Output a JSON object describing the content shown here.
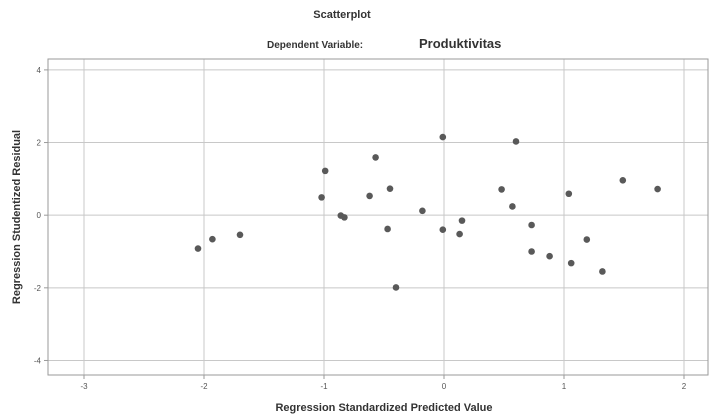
{
  "chart_data": {
    "type": "scatter",
    "title": "Scatterplot",
    "subtitle_prefix": "Dependent Variable:",
    "subtitle_value": "Produktivitas",
    "xlabel": "Regression Standardized Predicted Value",
    "ylabel": "Regression Studentized Residual",
    "xlim": [
      -3.3,
      2.2
    ],
    "ylim": [
      -4.4,
      4.3
    ],
    "xticks": [
      -3,
      -2,
      -1,
      0,
      1,
      2
    ],
    "yticks": [
      -4,
      -2,
      0,
      2,
      4
    ],
    "grid": true,
    "point_color": "#595959",
    "points": [
      {
        "x": -2.05,
        "y": -0.92
      },
      {
        "x": -1.93,
        "y": -0.66
      },
      {
        "x": -1.7,
        "y": -0.54
      },
      {
        "x": -1.02,
        "y": 0.49
      },
      {
        "x": -0.99,
        "y": 1.22
      },
      {
        "x": -0.86,
        "y": -0.01
      },
      {
        "x": -0.83,
        "y": -0.06
      },
      {
        "x": -0.62,
        "y": 0.53
      },
      {
        "x": -0.57,
        "y": 1.59
      },
      {
        "x": -0.47,
        "y": -0.38
      },
      {
        "x": -0.45,
        "y": 0.73
      },
      {
        "x": -0.4,
        "y": -1.99
      },
      {
        "x": -0.18,
        "y": 0.12
      },
      {
        "x": -0.01,
        "y": 2.15
      },
      {
        "x": -0.01,
        "y": -0.4
      },
      {
        "x": 0.13,
        "y": -0.52
      },
      {
        "x": 0.15,
        "y": -0.15
      },
      {
        "x": 0.48,
        "y": 0.71
      },
      {
        "x": 0.57,
        "y": 0.24
      },
      {
        "x": 0.6,
        "y": 2.03
      },
      {
        "x": 0.73,
        "y": -0.27
      },
      {
        "x": 0.73,
        "y": -1.0
      },
      {
        "x": 0.88,
        "y": -1.13
      },
      {
        "x": 1.04,
        "y": 0.59
      },
      {
        "x": 1.06,
        "y": -1.32
      },
      {
        "x": 1.19,
        "y": -0.67
      },
      {
        "x": 1.32,
        "y": -1.55
      },
      {
        "x": 1.49,
        "y": 0.96
      },
      {
        "x": 1.78,
        "y": 0.72
      }
    ]
  }
}
